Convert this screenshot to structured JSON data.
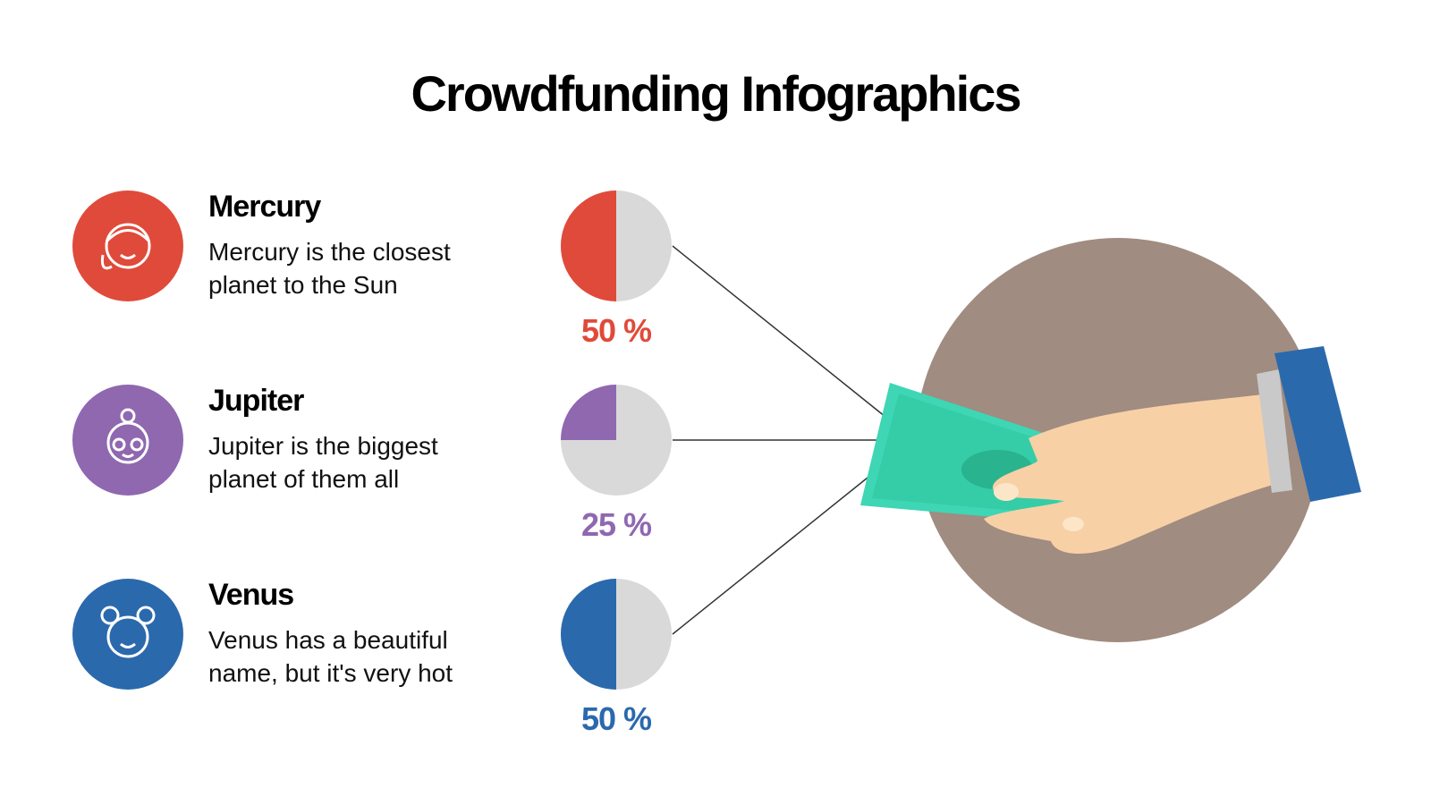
{
  "title": "Crowdfunding Infographics",
  "chart_data": [
    {
      "type": "pie",
      "title": "Mercury",
      "subtitle": "Mercury is the closest planet to the Sun",
      "values": [
        50
      ],
      "value_labels": [
        "50 %"
      ],
      "color": "#e04a3a"
    },
    {
      "type": "pie",
      "title": "Jupiter",
      "subtitle": "Jupiter is the biggest planet of them all",
      "values": [
        25
      ],
      "value_labels": [
        "25 %"
      ],
      "color": "#8f68b0"
    },
    {
      "type": "pie",
      "title": "Venus",
      "subtitle": "Venus has a beautiful name, but it's very hot",
      "values": [
        50
      ],
      "value_labels": [
        "50 %"
      ],
      "color": "#2b69ad"
    }
  ]
}
